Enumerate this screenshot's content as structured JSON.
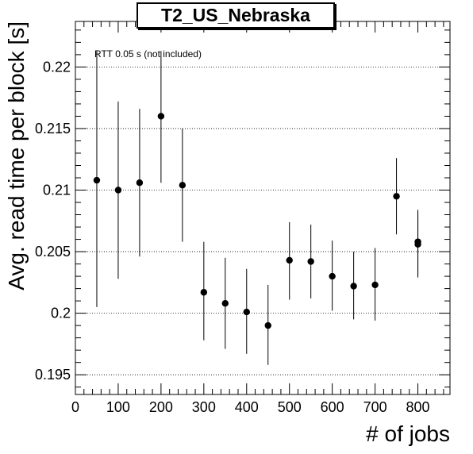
{
  "chart_data": {
    "type": "scatter",
    "title": "T2_US_Nebraska",
    "annotation": "RTT 0.05 s (not included)",
    "xlabel": "# of jobs",
    "ylabel": "Avg. read time per block [s]",
    "xlim": [
      0,
      875
    ],
    "ylim": [
      0.1934,
      0.2237
    ],
    "x_ticks": [
      0,
      100,
      200,
      300,
      400,
      500,
      600,
      700,
      800
    ],
    "y_ticks": [
      0.195,
      0.2,
      0.205,
      0.21,
      0.215,
      0.22
    ],
    "y_tick_labels": [
      "0.195",
      "0.2",
      "0.205",
      "0.21",
      "0.215",
      "0.22"
    ],
    "grid": "horizontal dotted",
    "marker_color": "#000000",
    "points": [
      {
        "x": 50,
        "y": 0.2108,
        "ylow": 0.2005,
        "yhigh": 0.2213
      },
      {
        "x": 100,
        "y": 0.21,
        "ylow": 0.2028,
        "yhigh": 0.2172
      },
      {
        "x": 150,
        "y": 0.2106,
        "ylow": 0.2046,
        "yhigh": 0.2166
      },
      {
        "x": 200,
        "y": 0.216,
        "ylow": 0.2106,
        "yhigh": 0.2213
      },
      {
        "x": 250,
        "y": 0.2104,
        "ylow": 0.2058,
        "yhigh": 0.215
      },
      {
        "x": 300,
        "y": 0.2017,
        "ylow": 0.1978,
        "yhigh": 0.2058
      },
      {
        "x": 350,
        "y": 0.2008,
        "ylow": 0.1971,
        "yhigh": 0.2045
      },
      {
        "x": 400,
        "y": 0.2001,
        "ylow": 0.1967,
        "yhigh": 0.2036
      },
      {
        "x": 450,
        "y": 0.199,
        "ylow": 0.1958,
        "yhigh": 0.2023
      },
      {
        "x": 500,
        "y": 0.2043,
        "ylow": 0.2011,
        "yhigh": 0.2074
      },
      {
        "x": 550,
        "y": 0.2042,
        "ylow": 0.2012,
        "yhigh": 0.2072
      },
      {
        "x": 600,
        "y": 0.203,
        "ylow": 0.2002,
        "yhigh": 0.2059
      },
      {
        "x": 650,
        "y": 0.2022,
        "ylow": 0.1995,
        "yhigh": 0.205
      },
      {
        "x": 700,
        "y": 0.2023,
        "ylow": 0.1994,
        "yhigh": 0.2053
      },
      {
        "x": 750,
        "y": 0.2095,
        "ylow": 0.2064,
        "yhigh": 0.2126
      },
      {
        "x": 800,
        "y": 0.2058,
        "ylow": 0.2031,
        "yhigh": 0.2084
      },
      {
        "x": 800,
        "y": 0.2056,
        "ylow": 0.2029,
        "yhigh": 0.2082
      }
    ]
  }
}
